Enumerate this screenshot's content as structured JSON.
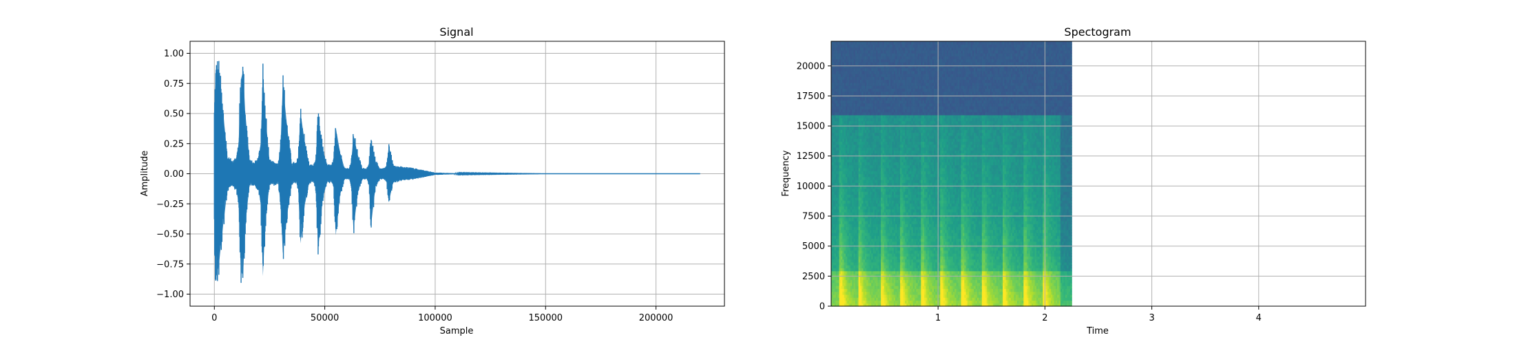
{
  "chart_data": [
    {
      "type": "line",
      "title": "Signal",
      "xlabel": "Sample",
      "ylabel": "Amplitude",
      "xlim": [
        -11000,
        231000
      ],
      "ylim": [
        -1.1,
        1.1
      ],
      "xticks": [
        0,
        50000,
        100000,
        150000,
        200000
      ],
      "xtick_labels": [
        "0",
        "50000",
        "100000",
        "150000",
        "200000"
      ],
      "yticks": [
        -1.0,
        -0.75,
        -0.5,
        -0.25,
        0.0,
        0.25,
        0.5,
        0.75,
        1.0
      ],
      "ytick_labels": [
        "−1.00",
        "−0.75",
        "−0.50",
        "−0.25",
        "0.00",
        "0.25",
        "0.50",
        "0.75",
        "1.00"
      ],
      "grid": true,
      "series": [
        {
          "color": "#1f77b4",
          "envelope": {
            "x": [
              0,
              500,
              1000,
              2000,
              4000,
              6000,
              8000,
              10000,
              11000,
              12000,
              13000,
              14000,
              16000,
              18000,
              20000,
              21000,
              22000,
              23000,
              25000,
              27000,
              29000,
              30000,
              31000,
              33000,
              35000,
              37000,
              38000,
              39000,
              41000,
              43000,
              45000,
              46000,
              47000,
              49000,
              51000,
              53000,
              54000,
              55000,
              57000,
              59000,
              61000,
              62000,
              63000,
              65000,
              67000,
              69000,
              70000,
              71000,
              73000,
              75000,
              77000,
              78000,
              79000,
              81000,
              85000,
              90000,
              95000,
              100000,
              110000,
              150000,
              220000
            ],
            "max": [
              0.6,
              0.95,
              1.0,
              0.98,
              0.6,
              0.15,
              0.12,
              0.15,
              0.3,
              0.92,
              1.0,
              0.6,
              0.12,
              0.1,
              0.15,
              0.3,
              1.0,
              0.6,
              0.12,
              0.1,
              0.1,
              0.3,
              0.88,
              0.45,
              0.1,
              0.1,
              0.15,
              0.6,
              0.3,
              0.08,
              0.08,
              0.15,
              0.55,
              0.25,
              0.08,
              0.08,
              0.12,
              0.45,
              0.2,
              0.05,
              0.05,
              0.12,
              0.38,
              0.18,
              0.05,
              0.05,
              0.1,
              0.32,
              0.12,
              0.05,
              0.05,
              0.08,
              0.27,
              0.08,
              0.06,
              0.05,
              0.03,
              0.01,
              0.003,
              0.0,
              0.0
            ],
            "min": [
              -0.55,
              -0.95,
              -1.0,
              -0.9,
              -0.5,
              -0.15,
              -0.1,
              -0.15,
              -0.3,
              -0.95,
              -1.0,
              -0.5,
              -0.1,
              -0.1,
              -0.15,
              -0.3,
              -1.0,
              -0.5,
              -0.1,
              -0.1,
              -0.1,
              -0.3,
              -0.78,
              -0.4,
              -0.1,
              -0.08,
              -0.15,
              -0.68,
              -0.3,
              -0.08,
              -0.08,
              -0.15,
              -0.75,
              -0.25,
              -0.08,
              -0.08,
              -0.12,
              -0.6,
              -0.2,
              -0.05,
              -0.05,
              -0.12,
              -0.55,
              -0.18,
              -0.05,
              -0.05,
              -0.1,
              -0.5,
              -0.12,
              -0.05,
              -0.05,
              -0.08,
              -0.28,
              -0.08,
              -0.06,
              -0.05,
              -0.03,
              -0.01,
              -0.003,
              0.0,
              0.0
            ]
          }
        }
      ]
    },
    {
      "type": "heatmap",
      "title": "Spectogram",
      "xlabel": "Time",
      "ylabel": "Frequency",
      "xlim": [
        0.0,
        5.0
      ],
      "ylim": [
        0,
        22050
      ],
      "xticks": [
        1,
        2,
        3,
        4
      ],
      "xtick_labels": [
        "1",
        "2",
        "3",
        "4"
      ],
      "yticks": [
        0,
        2500,
        5000,
        7500,
        10000,
        12500,
        15000,
        17500,
        20000
      ],
      "ytick_labels": [
        "0",
        "2500",
        "5000",
        "7500",
        "10000",
        "12500",
        "15000",
        "17500",
        "20000"
      ],
      "grid": true,
      "colormap": "viridis",
      "data_extent_x": [
        0.0,
        2.25
      ],
      "cutoff_frequency": 16000,
      "onsets_time": [
        0.1,
        0.27,
        0.48,
        0.66,
        0.86,
        1.04,
        1.24,
        1.43,
        1.62,
        1.82,
        2.0
      ],
      "high_band_color": "#3b5a88"
    }
  ]
}
